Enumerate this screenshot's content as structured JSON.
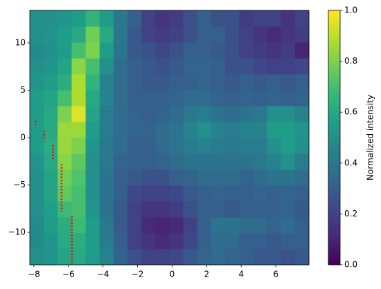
{
  "chart_data": {
    "type": "heatmap",
    "colormap": "viridis",
    "colorbar_label": "Normalized intensity",
    "clim": [
      0,
      1
    ],
    "cticks": [
      {
        "value": 0,
        "label": "0.0"
      },
      0.2,
      0.4,
      0.6,
      0.8,
      {
        "value": 1,
        "label": "1.0"
      }
    ],
    "xlim": [
      -8.24,
      7.92
    ],
    "ylim": [
      -13.43,
      13.43
    ],
    "xticks": [
      {
        "value": -8,
        "label": "−8"
      },
      {
        "value": -6,
        "label": "−6"
      },
      {
        "value": -4,
        "label": "−4"
      },
      {
        "value": -2,
        "label": "−2"
      },
      0,
      2,
      4,
      6
    ],
    "yticks": [
      {
        "value": -10,
        "label": "−10"
      },
      {
        "value": -5,
        "label": "−5"
      },
      0,
      5,
      10
    ],
    "x_bins": [
      -8.24,
      -7.432,
      -6.624,
      -5.816,
      -5.008,
      -4.2,
      -3.392,
      -2.584,
      -1.776,
      -0.968,
      -0.16,
      0.648,
      1.456,
      2.264,
      3.072,
      3.88,
      4.688,
      5.496,
      6.304,
      7.112,
      7.92
    ],
    "y_bins": [
      -13.43,
      -11.751,
      -10.073,
      -8.394,
      -6.715,
      -5.036,
      -3.358,
      -1.679,
      0,
      1.679,
      3.358,
      5.036,
      6.715,
      8.394,
      10.073,
      11.751,
      13.43
    ],
    "values": [
      [
        0.5,
        0.52,
        0.58,
        0.6,
        0.55,
        0.45,
        0.32,
        0.25,
        0.2,
        0.2,
        0.22,
        0.28,
        0.32,
        0.35,
        0.32,
        0.3,
        0.28,
        0.28,
        0.25,
        0.28
      ],
      [
        0.48,
        0.52,
        0.6,
        0.62,
        0.55,
        0.42,
        0.3,
        0.2,
        0.15,
        0.12,
        0.15,
        0.22,
        0.3,
        0.35,
        0.35,
        0.3,
        0.3,
        0.28,
        0.3,
        0.3
      ],
      [
        0.48,
        0.55,
        0.62,
        0.68,
        0.55,
        0.4,
        0.28,
        0.2,
        0.12,
        0.1,
        0.12,
        0.2,
        0.3,
        0.38,
        0.38,
        0.35,
        0.35,
        0.32,
        0.35,
        0.3
      ],
      [
        0.5,
        0.56,
        0.68,
        0.7,
        0.52,
        0.38,
        0.28,
        0.2,
        0.15,
        0.15,
        0.18,
        0.25,
        0.3,
        0.3,
        0.28,
        0.3,
        0.3,
        0.3,
        0.32,
        0.28
      ],
      [
        0.5,
        0.58,
        0.75,
        0.7,
        0.5,
        0.38,
        0.3,
        0.22,
        0.2,
        0.2,
        0.22,
        0.28,
        0.3,
        0.32,
        0.3,
        0.3,
        0.32,
        0.3,
        0.32,
        0.3
      ],
      [
        0.5,
        0.58,
        0.78,
        0.72,
        0.5,
        0.38,
        0.3,
        0.28,
        0.25,
        0.25,
        0.3,
        0.32,
        0.35,
        0.35,
        0.35,
        0.32,
        0.35,
        0.38,
        0.38,
        0.35
      ],
      [
        0.52,
        0.6,
        0.82,
        0.75,
        0.5,
        0.4,
        0.32,
        0.3,
        0.3,
        0.32,
        0.35,
        0.38,
        0.38,
        0.38,
        0.38,
        0.38,
        0.4,
        0.45,
        0.5,
        0.42
      ],
      [
        0.55,
        0.62,
        0.85,
        0.8,
        0.52,
        0.4,
        0.35,
        0.3,
        0.3,
        0.35,
        0.38,
        0.42,
        0.45,
        0.42,
        0.4,
        0.42,
        0.42,
        0.5,
        0.55,
        0.5
      ],
      [
        0.55,
        0.6,
        0.85,
        0.85,
        0.55,
        0.42,
        0.35,
        0.32,
        0.32,
        0.35,
        0.38,
        0.45,
        0.5,
        0.45,
        0.42,
        0.45,
        0.45,
        0.55,
        0.55,
        0.52
      ],
      [
        0.55,
        0.6,
        0.8,
        0.95,
        0.58,
        0.42,
        0.35,
        0.32,
        0.3,
        0.32,
        0.35,
        0.4,
        0.42,
        0.38,
        0.35,
        0.38,
        0.4,
        0.5,
        0.5,
        0.45
      ],
      [
        0.55,
        0.58,
        0.7,
        0.88,
        0.6,
        0.45,
        0.35,
        0.3,
        0.3,
        0.3,
        0.32,
        0.35,
        0.35,
        0.32,
        0.3,
        0.32,
        0.3,
        0.32,
        0.3,
        0.32
      ],
      [
        0.52,
        0.55,
        0.62,
        0.88,
        0.65,
        0.45,
        0.35,
        0.3,
        0.28,
        0.28,
        0.3,
        0.3,
        0.32,
        0.3,
        0.28,
        0.3,
        0.28,
        0.3,
        0.28,
        0.3
      ],
      [
        0.5,
        0.52,
        0.58,
        0.82,
        0.7,
        0.5,
        0.35,
        0.3,
        0.28,
        0.25,
        0.28,
        0.32,
        0.32,
        0.3,
        0.25,
        0.25,
        0.22,
        0.2,
        0.2,
        0.22
      ],
      [
        0.48,
        0.5,
        0.55,
        0.7,
        0.8,
        0.55,
        0.38,
        0.28,
        0.25,
        0.22,
        0.25,
        0.3,
        0.3,
        0.28,
        0.25,
        0.2,
        0.18,
        0.15,
        0.18,
        0.1
      ],
      [
        0.5,
        0.52,
        0.55,
        0.6,
        0.78,
        0.6,
        0.4,
        0.28,
        0.2,
        0.18,
        0.2,
        0.25,
        0.3,
        0.3,
        0.25,
        0.2,
        0.15,
        0.12,
        0.15,
        0.18
      ],
      [
        0.5,
        0.5,
        0.52,
        0.55,
        0.65,
        0.55,
        0.4,
        0.3,
        0.2,
        0.15,
        0.18,
        0.25,
        0.3,
        0.25,
        0.25,
        0.18,
        0.2,
        0.2,
        0.15,
        0.2
      ]
    ],
    "overlay": {
      "color": "#ff0000",
      "linestyle": "dotted",
      "x": [
        -7.9,
        -7.9,
        null,
        -7.4,
        -7.4,
        null,
        -6.9,
        -6.9,
        null,
        -6.4,
        -6.4,
        null,
        -5.8,
        -5.8
      ],
      "y": [
        1.8,
        1.2,
        null,
        0.7,
        -0.3,
        null,
        -0.8,
        -2.3,
        null,
        -2.8,
        -7.8,
        null,
        -8.3,
        -13.3
      ]
    }
  }
}
